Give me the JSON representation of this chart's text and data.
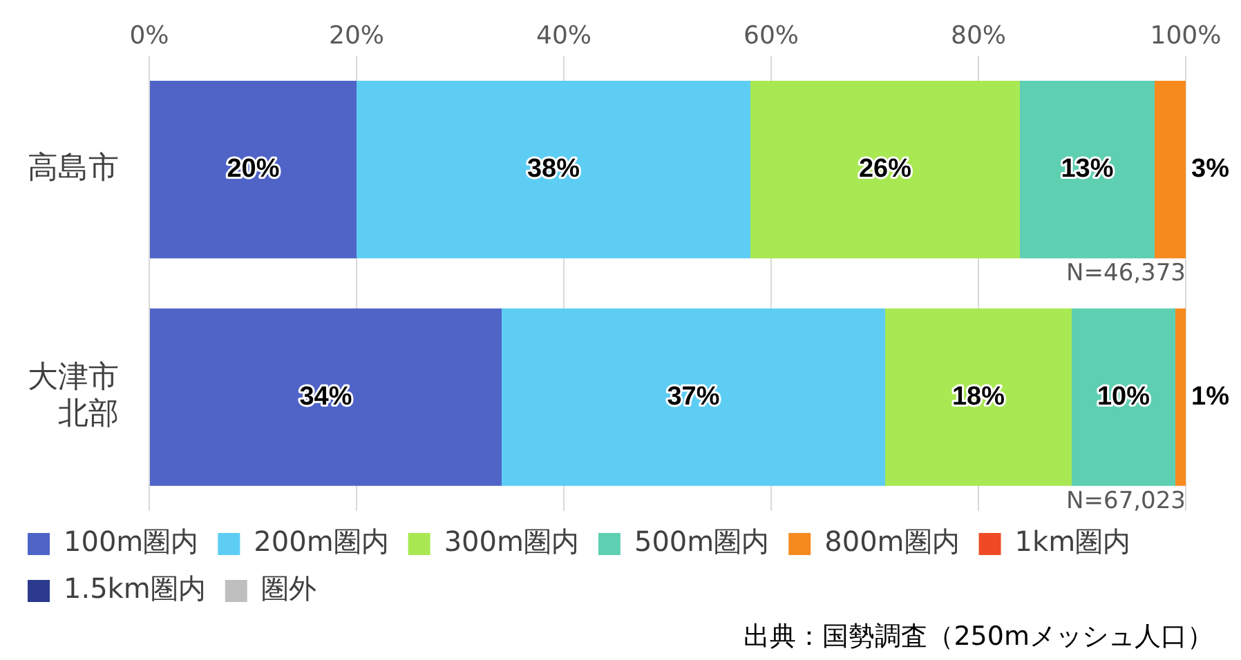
{
  "chart_data": {
    "type": "bar",
    "orientation": "horizontal",
    "stacked": true,
    "categories": [
      "高島市",
      "大津市北部"
    ],
    "series": [
      {
        "name": "100m圏内",
        "color": "#5064c8",
        "values": [
          20,
          34
        ],
        "value_labels": [
          "20%",
          "34%"
        ]
      },
      {
        "name": "200m圏内",
        "color": "#5ecdf3",
        "values": [
          38,
          37
        ],
        "value_labels": [
          "38%",
          "37%"
        ]
      },
      {
        "name": "300m圏内",
        "color": "#a8e852",
        "values": [
          26,
          18
        ],
        "value_labels": [
          "26%",
          "18%"
        ]
      },
      {
        "name": "500m圏内",
        "color": "#5fcfb2",
        "values": [
          13,
          10
        ],
        "value_labels": [
          "13%",
          "10%"
        ]
      },
      {
        "name": "800m圏内",
        "color": "#f78a1f",
        "values": [
          3,
          1
        ],
        "value_labels": [
          "3%",
          "1%"
        ]
      },
      {
        "name": "1km圏内",
        "color": "#f04a24",
        "values": [
          0,
          0
        ]
      },
      {
        "name": "1.5km圏内",
        "color": "#2b3a8f",
        "values": [
          0,
          0
        ]
      },
      {
        "name": "圏外",
        "color": "#bfbfbf",
        "values": [
          0,
          0
        ]
      }
    ],
    "xlim": [
      0,
      100
    ],
    "xticks": [
      {
        "value": 0,
        "label": "0%"
      },
      {
        "value": 20,
        "label": "20%"
      },
      {
        "value": 40,
        "label": "40%"
      },
      {
        "value": 60,
        "label": "60%"
      },
      {
        "value": 80,
        "label": "80%"
      },
      {
        "value": 100,
        "label": "100%"
      }
    ],
    "grid": "x",
    "legend": "bottom",
    "annotations": [
      {
        "text": "N=46,373",
        "x": 100,
        "y": "高島市"
      },
      {
        "text": "N=67,023",
        "x": 100,
        "y": "大津市北部"
      },
      "出典：国勢調査（250mメッシュ人口）"
    ]
  }
}
